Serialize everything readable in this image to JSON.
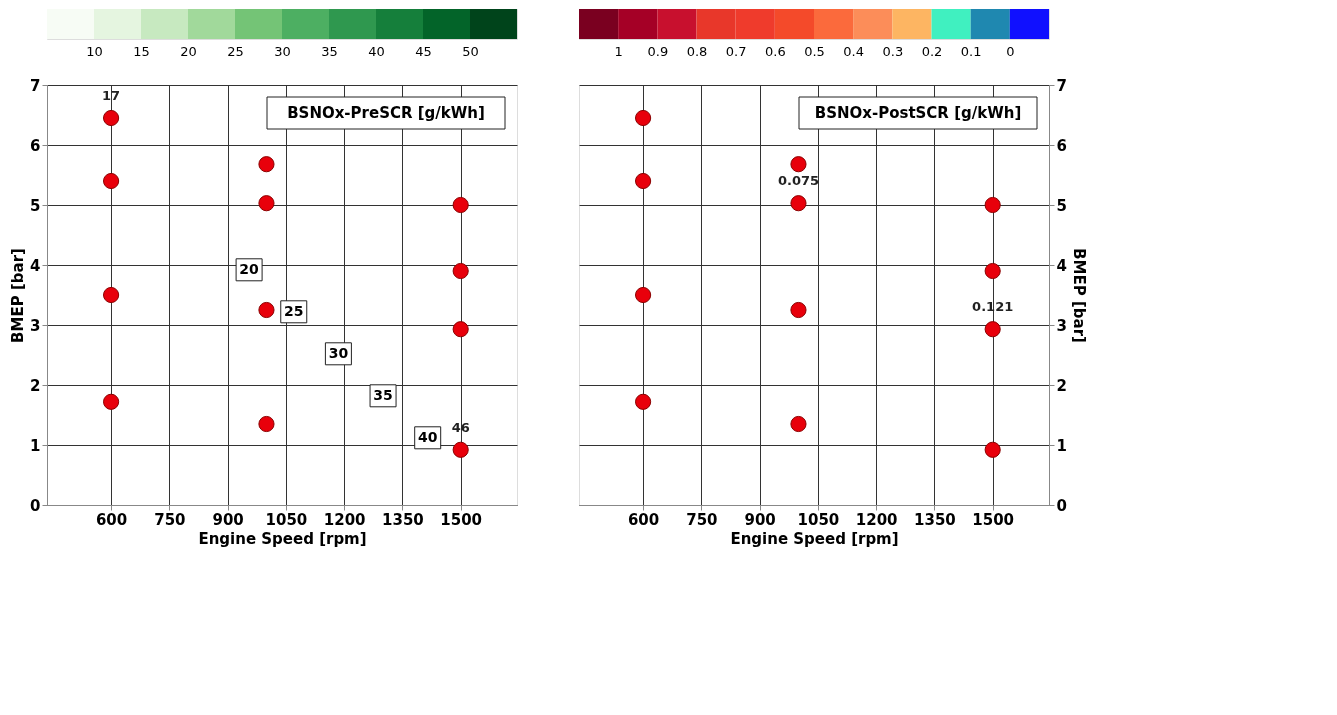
{
  "chart_data": [
    {
      "type": "scatter",
      "clabel": "BSNOx-PreSCR [g/kWh]",
      "xlabel": "Engine Speed [rpm]",
      "ylabel": "BMEP [bar]",
      "x": [
        600,
        600,
        600,
        600,
        1000,
        1000,
        1000,
        1000,
        1500,
        1500,
        1500,
        1500
      ],
      "series": [
        {
          "color": "#e8000b",
          "values": [
            6.45,
            5.4,
            3.5,
            1.72,
            5.68,
            5.03,
            3.25,
            1.35,
            5.0,
            3.9,
            2.93,
            0.92
          ]
        }
      ],
      "xlim": [
        435,
        1645
      ],
      "xticks": [
        600,
        750,
        900,
        1050,
        1200,
        1350,
        1500
      ],
      "ylim": [
        0,
        7
      ],
      "yticks": [
        0,
        1,
        2,
        3,
        4,
        5,
        6,
        7
      ],
      "clim": [
        5,
        55
      ],
      "cticks": [
        10,
        15,
        20,
        25,
        30,
        35,
        40,
        45,
        50
      ],
      "colors": [
        "#f7fcf5",
        "#e5f5e0",
        "#c7e9c0",
        "#a1d99b",
        "#74c476",
        "#4daf62",
        "#2f984f",
        "#157f3b",
        "#036429",
        "#00441b"
      ],
      "annotations": [
        {
          "text": "17",
          "x": 600,
          "y": 6.45
        },
        {
          "text": "46",
          "x": 1500,
          "y": 0.92
        },
        "20",
        "25",
        "30",
        "35",
        "40"
      ],
      "grid": true,
      "marker": "circle"
    },
    {
      "type": "scatter",
      "clabel": "BSNOx-PostSCR [g/kWh]",
      "xlabel": "Engine Speed [rpm]",
      "ylabel": "BMEP [bar]",
      "x": [
        600,
        600,
        600,
        600,
        1000,
        1000,
        1000,
        1000,
        1500,
        1500,
        1500,
        1500
      ],
      "series": [
        {
          "color": "#e8000b",
          "values": [
            6.45,
            5.4,
            3.5,
            1.72,
            5.68,
            5.03,
            3.25,
            1.35,
            5.0,
            3.9,
            2.93,
            0.92
          ]
        }
      ],
      "xlim": [
        435,
        1645
      ],
      "xticks": [
        600,
        750,
        900,
        1050,
        1200,
        1350,
        1500
      ],
      "ylim": [
        0,
        7
      ],
      "yticks": [
        0,
        1,
        2,
        3,
        4,
        5,
        6,
        7
      ],
      "clim": [
        1.1,
        -0.1
      ],
      "cticks": [
        1,
        0.9,
        0.8,
        0.7,
        0.6,
        0.5,
        0.4,
        0.3,
        0.2,
        0.1,
        0
      ],
      "colors": [
        "#7a0020",
        "#a50026",
        "#c8102e",
        "#e8372a",
        "#ef3b2c",
        "#f44a2a",
        "#fb6a3c",
        "#fc8d59",
        "#fdb562",
        "#40f0c0",
        "#1f88b0",
        "#1010ff"
      ],
      "annotations": [
        {
          "text": "0.075",
          "x": 1000,
          "y": 5.03
        },
        {
          "text": "0.121",
          "x": 1500,
          "y": 2.93
        }
      ],
      "grid": true,
      "marker": "circle"
    }
  ]
}
